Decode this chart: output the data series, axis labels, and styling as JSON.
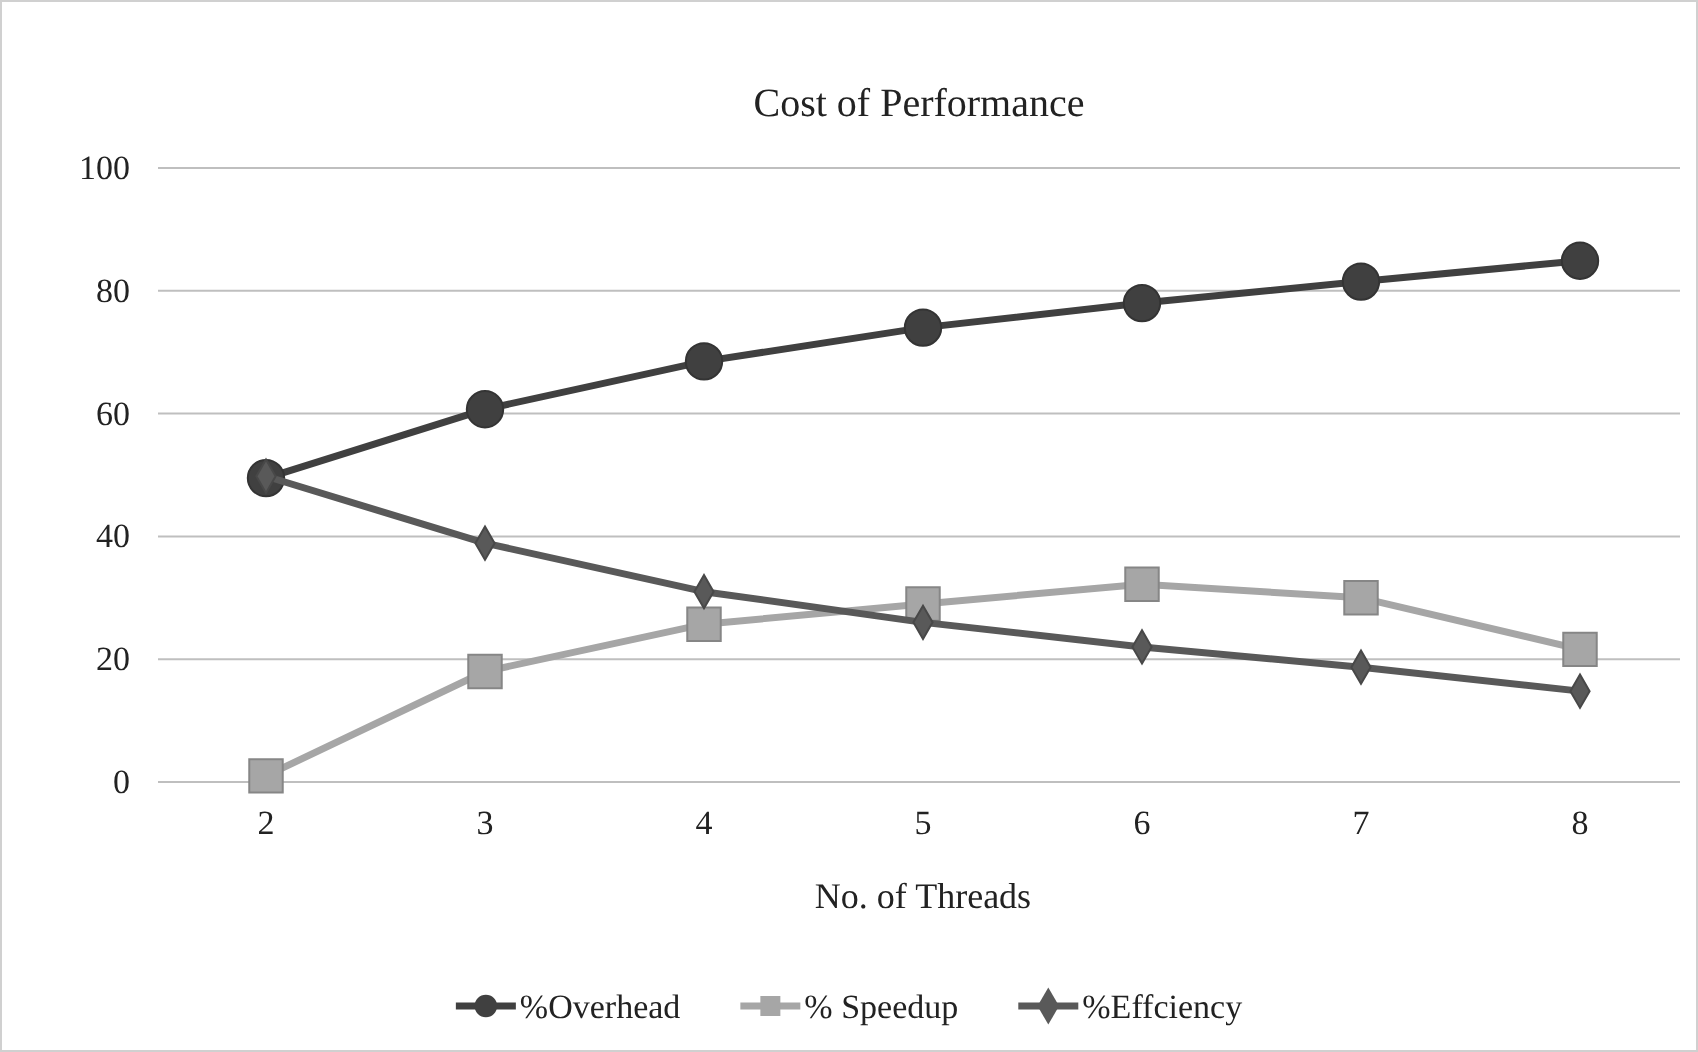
{
  "chart_data": {
    "type": "line",
    "title": "Cost of Performance",
    "xlabel": "No. of  Threads",
    "categories": [
      "2",
      "3",
      "4",
      "5",
      "6",
      "7",
      "8"
    ],
    "ylim": [
      0,
      100
    ],
    "yticks": [
      0,
      20,
      40,
      60,
      80,
      100
    ],
    "grid": "y",
    "legend": "bottom",
    "series": [
      {
        "name": "%Overhead",
        "color": "#404040",
        "marker": "circle",
        "values": [
          49.5,
          60.7,
          68.5,
          74,
          78,
          81.5,
          84.9
        ]
      },
      {
        "name": "% Speedup",
        "color": "#a6a6a6",
        "marker": "square",
        "values": [
          1,
          18,
          25.7,
          29,
          32.2,
          30,
          21.6
        ]
      },
      {
        "name": "%Effciency",
        "color": "#595959",
        "marker": "diamond",
        "values": [
          49.8,
          38.9,
          31,
          26,
          22,
          18.7,
          14.8
        ]
      }
    ]
  }
}
